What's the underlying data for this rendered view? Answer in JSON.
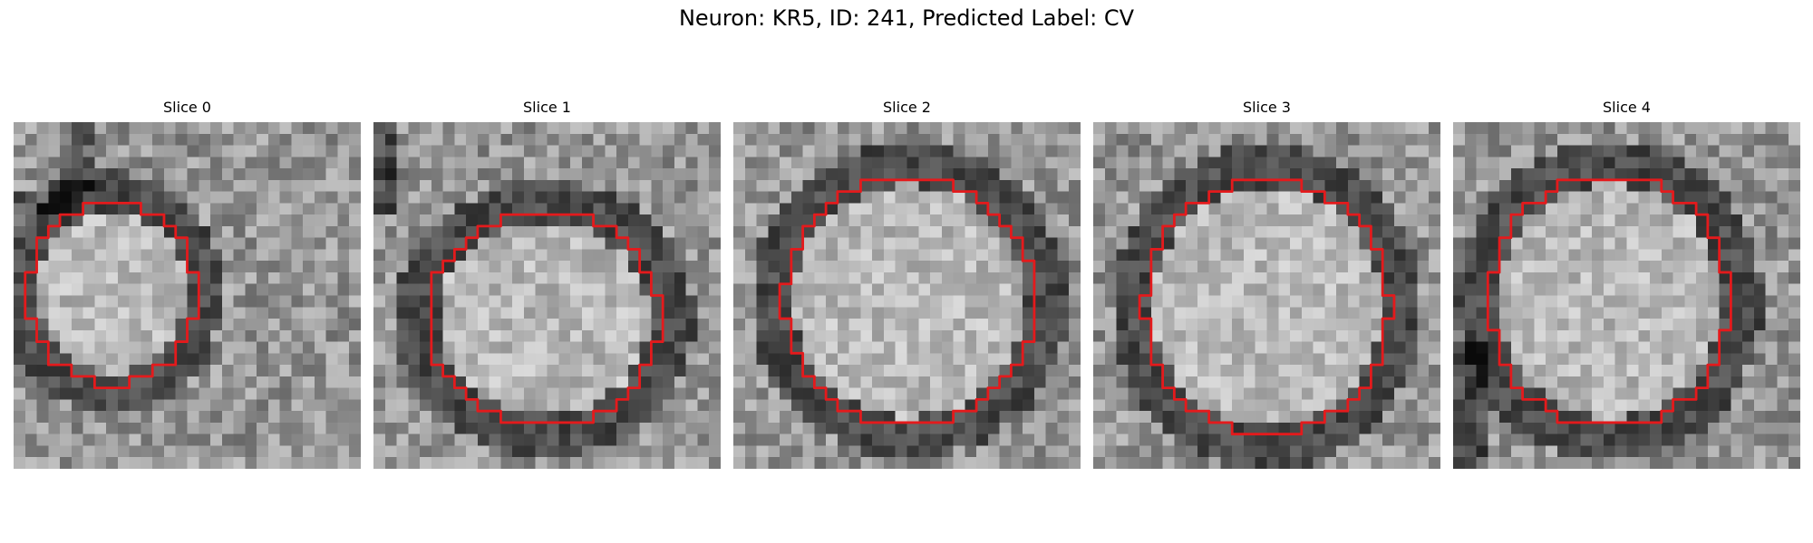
{
  "figure": {
    "title": "Neuron: KR5, ID: 241, Predicted Label: CV"
  },
  "panels": [
    {
      "title": "Slice 0"
    },
    {
      "title": "Slice 1"
    },
    {
      "title": "Slice 2"
    },
    {
      "title": "Slice 3"
    },
    {
      "title": "Slice 4"
    }
  ],
  "colors": {
    "contour": "#e41a1c",
    "background": "#ffffff"
  }
}
